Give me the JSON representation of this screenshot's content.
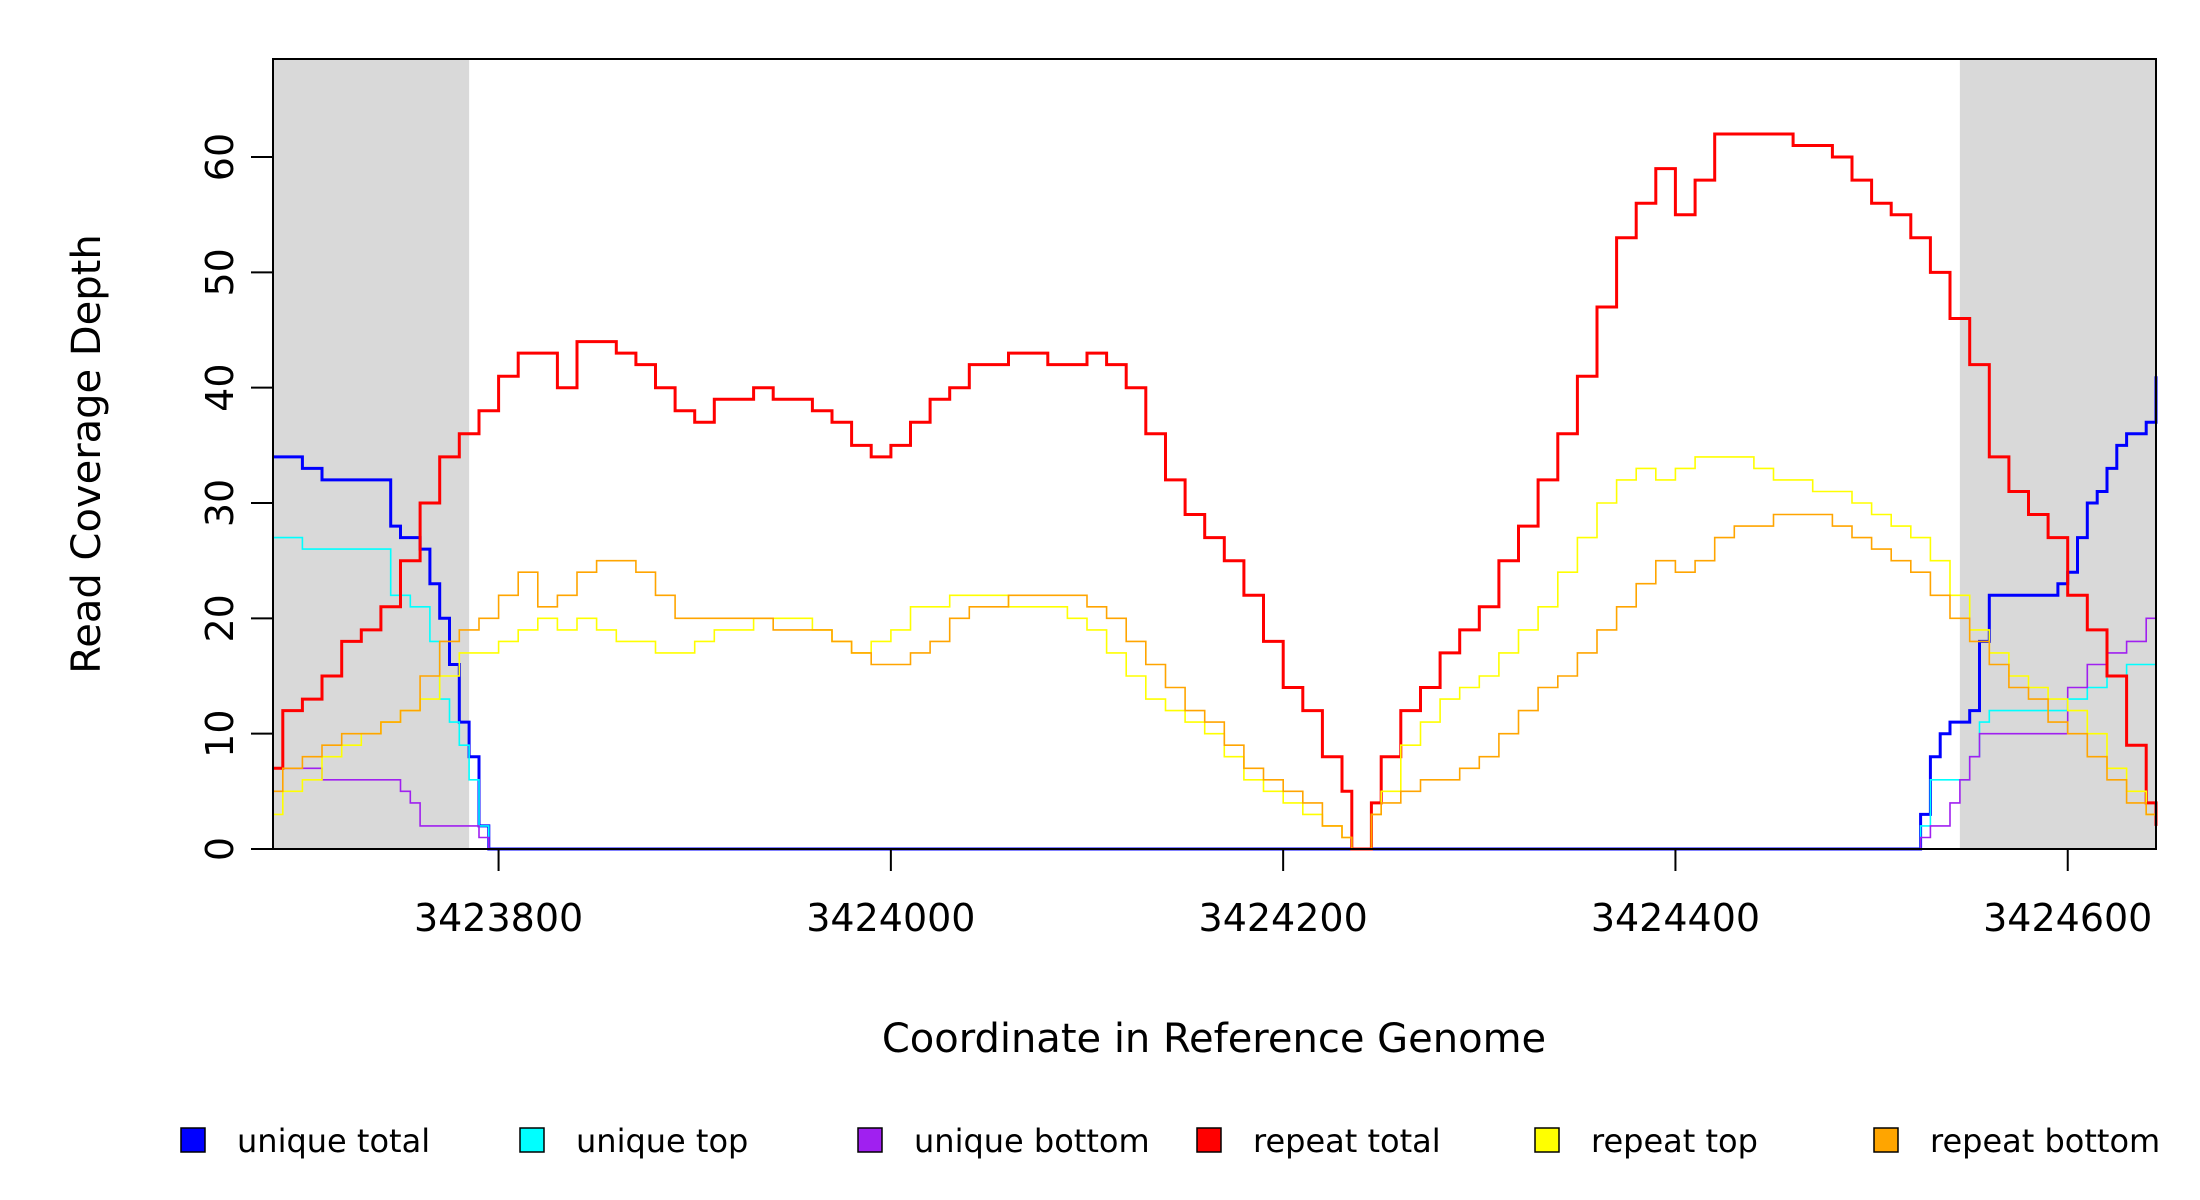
{
  "chart_data": {
    "type": "line",
    "xlabel": "Coordinate in Reference Genome",
    "ylabel": "Read Coverage Depth",
    "xlim": [
      3423685,
      3424645
    ],
    "ylim": [
      0,
      68.5
    ],
    "x_ticks": [
      3423800,
      3424000,
      3424200,
      3424400,
      3424600
    ],
    "x_tick_labels": [
      "3423800",
      "3424000",
      "3424200",
      "3424400",
      "3424600"
    ],
    "y_ticks": [
      0,
      10,
      20,
      30,
      40,
      50,
      60
    ],
    "y_tick_labels": [
      "0",
      "10",
      "20",
      "30",
      "40",
      "50",
      "60"
    ],
    "shaded_regions": [
      [
        3423685,
        3423785
      ],
      [
        3424545,
        3424645
      ]
    ],
    "shade_color": "#d9d9d9",
    "legend_position": "bottom",
    "series": [
      {
        "name": "unique total",
        "color": "#0000ff",
        "x": [
          3423685,
          3423700,
          3423710,
          3423740,
          3423745,
          3423750,
          3423760,
          3423765,
          3423770,
          3423775,
          3423780,
          3423785,
          3423790,
          3423795,
          3424520,
          3424525,
          3424530,
          3424535,
          3424540,
          3424550,
          3424555,
          3424560,
          3424590,
          3424595,
          3424600,
          3424605,
          3424610,
          3424615,
          3424620,
          3424625,
          3424630,
          3424640,
          3424645
        ],
        "values": [
          34,
          33,
          32,
          32,
          28,
          27,
          26,
          23,
          20,
          16,
          11,
          8,
          2,
          0,
          0,
          3,
          8,
          10,
          11,
          12,
          18,
          22,
          22,
          23,
          24,
          27,
          30,
          31,
          33,
          35,
          36,
          37,
          41
        ]
      },
      {
        "name": "unique top",
        "color": "#00ffff",
        "x": [
          3423685,
          3423700,
          3423740,
          3423745,
          3423755,
          3423765,
          3423770,
          3423775,
          3423780,
          3423785,
          3423790,
          3423795,
          3424520,
          3424525,
          3424530,
          3424545,
          3424550,
          3424555,
          3424560,
          3424590,
          3424600,
          3424610,
          3424620,
          3424630,
          3424645
        ],
        "values": [
          27,
          26,
          26,
          22,
          21,
          18,
          13,
          11,
          9,
          6,
          2,
          0,
          0,
          2,
          6,
          6,
          8,
          11,
          12,
          12,
          13,
          14,
          15,
          16,
          17
        ]
      },
      {
        "name": "unique bottom",
        "color": "#a020f0",
        "x": [
          3423685,
          3423710,
          3423740,
          3423750,
          3423755,
          3423760,
          3423785,
          3423790,
          3423795,
          3424520,
          3424525,
          3424530,
          3424540,
          3424545,
          3424550,
          3424555,
          3424560,
          3424590,
          3424600,
          3424610,
          3424620,
          3424630,
          3424640,
          3424645
        ],
        "values": [
          7,
          6,
          6,
          5,
          4,
          2,
          2,
          1,
          0,
          0,
          1,
          2,
          4,
          6,
          8,
          10,
          10,
          10,
          14,
          16,
          17,
          18,
          20,
          24
        ]
      },
      {
        "name": "repeat total",
        "color": "#ff0000",
        "x": [
          3423685,
          3423690,
          3423700,
          3423710,
          3423720,
          3423730,
          3423740,
          3423750,
          3423760,
          3423770,
          3423780,
          3423790,
          3423800,
          3423810,
          3423820,
          3423830,
          3423840,
          3423850,
          3423860,
          3423870,
          3423880,
          3423890,
          3423900,
          3423910,
          3423920,
          3423930,
          3423940,
          3423950,
          3423960,
          3423970,
          3423980,
          3423990,
          3424000,
          3424010,
          3424020,
          3424030,
          3424040,
          3424050,
          3424060,
          3424070,
          3424080,
          3424090,
          3424100,
          3424110,
          3424120,
          3424130,
          3424140,
          3424150,
          3424160,
          3424170,
          3424180,
          3424190,
          3424200,
          3424210,
          3424220,
          3424230,
          3424235,
          3424240,
          3424245,
          3424250,
          3424260,
          3424270,
          3424280,
          3424290,
          3424300,
          3424310,
          3424320,
          3424330,
          3424340,
          3424350,
          3424360,
          3424370,
          3424380,
          3424390,
          3424400,
          3424410,
          3424420,
          3424430,
          3424440,
          3424450,
          3424460,
          3424470,
          3424480,
          3424490,
          3424500,
          3424510,
          3424520,
          3424530,
          3424540,
          3424550,
          3424560,
          3424570,
          3424580,
          3424590,
          3424600,
          3424610,
          3424620,
          3424630,
          3424640,
          3424645
        ],
        "values": [
          7,
          12,
          13,
          15,
          18,
          19,
          21,
          25,
          30,
          34,
          36,
          38,
          41,
          43,
          43,
          40,
          44,
          44,
          43,
          42,
          40,
          38,
          37,
          39,
          39,
          40,
          39,
          39,
          38,
          37,
          35,
          34,
          35,
          37,
          39,
          40,
          42,
          42,
          43,
          43,
          42,
          42,
          43,
          42,
          40,
          36,
          32,
          29,
          27,
          25,
          22,
          18,
          14,
          12,
          8,
          5,
          0,
          0,
          4,
          8,
          12,
          14,
          17,
          19,
          21,
          25,
          28,
          32,
          36,
          41,
          47,
          53,
          56,
          59,
          55,
          58,
          62,
          62,
          62,
          62,
          61,
          61,
          60,
          58,
          56,
          55,
          53,
          50,
          46,
          42,
          34,
          31,
          29,
          27,
          22,
          19,
          15,
          9,
          4,
          2
        ]
      },
      {
        "name": "repeat top",
        "color": "#ffff00",
        "x": [
          3423685,
          3423690,
          3423700,
          3423710,
          3423720,
          3423730,
          3423740,
          3423750,
          3423760,
          3423770,
          3423780,
          3423790,
          3423800,
          3423810,
          3423820,
          3423830,
          3423840,
          3423850,
          3423860,
          3423870,
          3423880,
          3423890,
          3423900,
          3423910,
          3423920,
          3423930,
          3423940,
          3423950,
          3423960,
          3423970,
          3423980,
          3423990,
          3424000,
          3424010,
          3424020,
          3424030,
          3424040,
          3424050,
          3424060,
          3424070,
          3424080,
          3424090,
          3424100,
          3424110,
          3424120,
          3424130,
          3424140,
          3424150,
          3424160,
          3424170,
          3424180,
          3424190,
          3424200,
          3424210,
          3424220,
          3424230,
          3424235,
          3424240,
          3424245,
          3424250,
          3424260,
          3424270,
          3424280,
          3424290,
          3424300,
          3424310,
          3424320,
          3424330,
          3424340,
          3424350,
          3424360,
          3424370,
          3424380,
          3424390,
          3424400,
          3424410,
          3424420,
          3424430,
          3424440,
          3424450,
          3424460,
          3424470,
          3424480,
          3424490,
          3424500,
          3424510,
          3424520,
          3424530,
          3424540,
          3424550,
          3424560,
          3424570,
          3424580,
          3424590,
          3424600,
          3424610,
          3424620,
          3424630,
          3424640,
          3424645
        ],
        "values": [
          3,
          5,
          6,
          8,
          9,
          10,
          11,
          12,
          13,
          15,
          17,
          17,
          18,
          19,
          20,
          19,
          20,
          19,
          18,
          18,
          17,
          17,
          18,
          19,
          19,
          20,
          20,
          20,
          19,
          18,
          17,
          18,
          19,
          21,
          21,
          22,
          22,
          22,
          21,
          21,
          21,
          20,
          19,
          17,
          15,
          13,
          12,
          11,
          10,
          8,
          6,
          5,
          4,
          3,
          2,
          1,
          0,
          0,
          3,
          5,
          9,
          11,
          13,
          14,
          15,
          17,
          19,
          21,
          24,
          27,
          30,
          32,
          33,
          32,
          33,
          34,
          34,
          34,
          33,
          32,
          32,
          31,
          31,
          30,
          29,
          28,
          27,
          25,
          22,
          19,
          17,
          15,
          14,
          13,
          12,
          10,
          7,
          5,
          3,
          2
        ]
      },
      {
        "name": "repeat bottom",
        "color": "#ffa500",
        "x": [
          3423685,
          3423690,
          3423700,
          3423710,
          3423720,
          3423730,
          3423740,
          3423750,
          3423760,
          3423770,
          3423780,
          3423790,
          3423800,
          3423810,
          3423820,
          3423830,
          3423840,
          3423850,
          3423860,
          3423870,
          3423880,
          3423890,
          3423900,
          3423910,
          3423920,
          3423930,
          3423940,
          3423950,
          3423960,
          3423970,
          3423980,
          3423990,
          3424000,
          3424010,
          3424020,
          3424030,
          3424040,
          3424050,
          3424060,
          3424070,
          3424080,
          3424090,
          3424100,
          3424110,
          3424120,
          3424130,
          3424140,
          3424150,
          3424160,
          3424170,
          3424180,
          3424190,
          3424200,
          3424210,
          3424220,
          3424230,
          3424235,
          3424240,
          3424245,
          3424250,
          3424260,
          3424270,
          3424280,
          3424290,
          3424300,
          3424310,
          3424320,
          3424330,
          3424340,
          3424350,
          3424360,
          3424370,
          3424380,
          3424390,
          3424400,
          3424410,
          3424420,
          3424430,
          3424440,
          3424450,
          3424460,
          3424470,
          3424480,
          3424490,
          3424500,
          3424510,
          3424520,
          3424530,
          3424540,
          3424550,
          3424560,
          3424570,
          3424580,
          3424590,
          3424600,
          3424610,
          3424620,
          3424630,
          3424640,
          3424645
        ],
        "values": [
          5,
          7,
          8,
          9,
          10,
          10,
          11,
          12,
          15,
          18,
          19,
          20,
          22,
          24,
          21,
          22,
          24,
          25,
          25,
          24,
          22,
          20,
          20,
          20,
          20,
          20,
          19,
          19,
          19,
          18,
          17,
          16,
          16,
          17,
          18,
          20,
          21,
          21,
          22,
          22,
          22,
          22,
          21,
          20,
          18,
          16,
          14,
          12,
          11,
          9,
          7,
          6,
          5,
          4,
          2,
          1,
          0,
          0,
          3,
          4,
          5,
          6,
          6,
          7,
          8,
          10,
          12,
          14,
          15,
          17,
          19,
          21,
          23,
          25,
          24,
          25,
          27,
          28,
          28,
          29,
          29,
          29,
          28,
          27,
          26,
          25,
          24,
          22,
          20,
          18,
          16,
          14,
          13,
          11,
          10,
          8,
          6,
          4,
          3,
          2
        ]
      }
    ]
  },
  "legend": [
    {
      "label": "unique total",
      "color": "#0000ff"
    },
    {
      "label": "unique top",
      "color": "#00ffff"
    },
    {
      "label": "unique bottom",
      "color": "#a020f0"
    },
    {
      "label": "repeat total",
      "color": "#ff0000"
    },
    {
      "label": "repeat top",
      "color": "#ffff00"
    },
    {
      "label": "repeat bottom",
      "color": "#ffa500"
    }
  ]
}
